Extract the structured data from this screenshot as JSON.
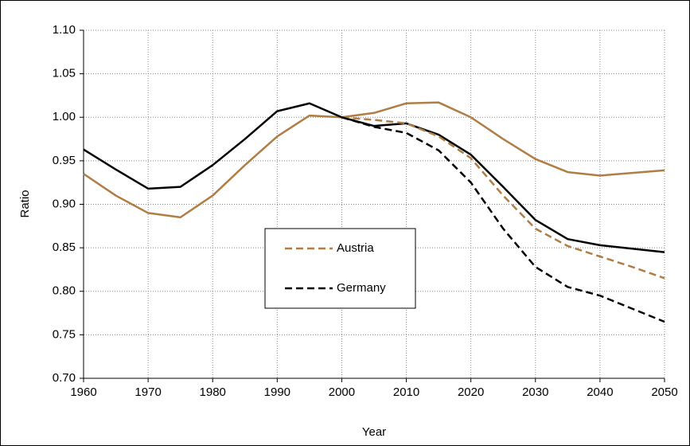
{
  "chart_data": {
    "type": "line",
    "x_label": "Year",
    "y_label": "Ratio",
    "x": [
      1960,
      1965,
      1970,
      1975,
      1980,
      1985,
      1990,
      1995,
      2000,
      2005,
      2010,
      2015,
      2020,
      2025,
      2030,
      2035,
      2040,
      2045,
      2050
    ],
    "series": [
      {
        "color": "#b07d45",
        "dashed": false,
        "values": [
          0.935,
          0.91,
          0.89,
          0.885,
          0.91,
          0.945,
          0.978,
          1.002,
          1.0,
          1.005,
          1.016,
          1.017,
          1.0,
          0.975,
          0.952,
          0.937,
          0.933,
          0.936,
          0.939
        ]
      },
      {
        "color": "#000000",
        "dashed": false,
        "values": [
          0.963,
          0.94,
          0.918,
          0.92,
          0.945,
          0.975,
          1.007,
          1.016,
          1.0,
          0.99,
          0.993,
          0.98,
          0.957,
          0.92,
          0.882,
          0.86,
          0.853,
          0.849,
          0.845
        ]
      },
      {
        "name": "Austria",
        "color": "#b07d45",
        "dashed": true,
        "values": [
          null,
          null,
          null,
          null,
          null,
          null,
          null,
          null,
          1.0,
          0.997,
          0.993,
          0.978,
          0.953,
          0.91,
          0.872,
          0.852,
          0.84,
          0.828,
          0.815
        ]
      },
      {
        "name": "Germany",
        "color": "#000000",
        "dashed": true,
        "values": [
          null,
          null,
          null,
          null,
          null,
          null,
          null,
          null,
          1.0,
          0.989,
          0.982,
          0.962,
          0.925,
          0.872,
          0.828,
          0.805,
          0.795,
          0.78,
          0.765
        ]
      }
    ],
    "xlim": [
      1960,
      2050
    ],
    "xticks": [
      1960,
      1970,
      1980,
      1990,
      2000,
      2010,
      2020,
      2030,
      2040,
      2050
    ],
    "ylim": [
      0.7,
      1.1
    ],
    "yticks": [
      {
        "value": 0.7,
        "label": "0.70"
      },
      {
        "value": 0.75,
        "label": "0.75"
      },
      {
        "value": 0.8,
        "label": "0.80"
      },
      {
        "value": 0.85,
        "label": "0.85"
      },
      {
        "value": 0.9,
        "label": "0.90"
      },
      {
        "value": 0.95,
        "label": "0.95"
      },
      {
        "value": 1.0,
        "label": "1.00"
      },
      {
        "value": 1.05,
        "label": "1.05"
      },
      {
        "value": 1.1,
        "label": "1.10"
      }
    ],
    "grid": true,
    "legend": "center"
  }
}
